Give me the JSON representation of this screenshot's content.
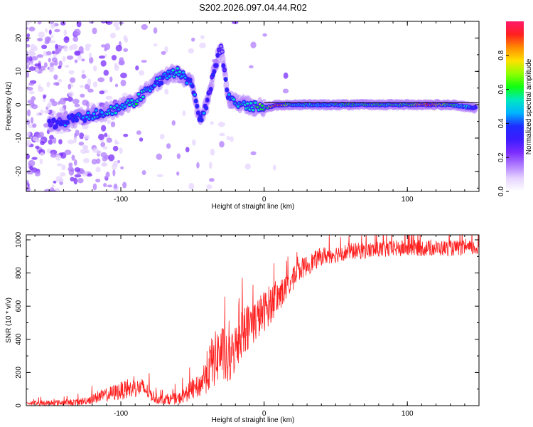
{
  "title": "S202.2026.097.04.44.R02",
  "colors": {
    "trace": "#ff2020",
    "frame": "#000000",
    "colormap": [
      "#ffffff",
      "#e6d4ff",
      "#b07cff",
      "#7a2cff",
      "#3a1cff",
      "#1f2dff",
      "#00b4ff",
      "#00e8c0",
      "#10ff10",
      "#90ff00",
      "#ffe000",
      "#ff8c00",
      "#ff2020",
      "#ff1a6a"
    ]
  },
  "chart_data": [
    {
      "type": "heatmap",
      "title": "S202.2026.097.04.44.R02",
      "xlabel": "Height of straight line (km)",
      "ylabel": "Frequency (Hz)",
      "xlim": [
        -166,
        150
      ],
      "ylim": [
        -26,
        25
      ],
      "xticks": [
        -100,
        0,
        100
      ],
      "yticks": [
        -20,
        -10,
        0,
        10,
        20
      ],
      "colorbar": {
        "label": "Normalized spectral amplitude",
        "range": [
          0,
          1
        ],
        "ticks": [
          "0.0",
          "0.2",
          "0.4",
          "0.6",
          "0.8"
        ]
      },
      "ridge": [
        {
          "x": -150,
          "f": -6,
          "amp": 0.25
        },
        {
          "x": -140,
          "f": -5,
          "amp": 0.35
        },
        {
          "x": -130,
          "f": -4,
          "amp": 0.45
        },
        {
          "x": -120,
          "f": -3,
          "amp": 0.45
        },
        {
          "x": -110,
          "f": -2,
          "amp": 0.5
        },
        {
          "x": -100,
          "f": -1,
          "amp": 0.5
        },
        {
          "x": -90,
          "f": 1,
          "amp": 0.55
        },
        {
          "x": -80,
          "f": 5,
          "amp": 0.5
        },
        {
          "x": -70,
          "f": 8,
          "amp": 0.45
        },
        {
          "x": -60,
          "f": 10,
          "amp": 0.5
        },
        {
          "x": -50,
          "f": 6,
          "amp": 0.4
        },
        {
          "x": -45,
          "f": -5,
          "amp": 0.4
        },
        {
          "x": -40,
          "f": 0,
          "amp": 0.35
        },
        {
          "x": -35,
          "f": 10,
          "amp": 0.3
        },
        {
          "x": -30,
          "f": 18,
          "amp": 0.2
        },
        {
          "x": -25,
          "f": 2,
          "amp": 0.45
        },
        {
          "x": -15,
          "f": 0,
          "amp": 0.55
        },
        {
          "x": 0,
          "f": -1,
          "amp": 0.6
        },
        {
          "x": 10,
          "f": 0,
          "amp": 0.9
        },
        {
          "x": 20,
          "f": 0,
          "amp": 0.55
        },
        {
          "x": 40,
          "f": 0,
          "amp": 0.5
        },
        {
          "x": 60,
          "f": 0,
          "amp": 0.55
        },
        {
          "x": 80,
          "f": 0,
          "amp": 0.6
        },
        {
          "x": 100,
          "f": 0,
          "amp": 0.6
        },
        {
          "x": 115,
          "f": 0,
          "amp": 0.95
        },
        {
          "x": 130,
          "f": 0,
          "amp": 0.55
        },
        {
          "x": 148,
          "f": -1,
          "amp": 0.4
        }
      ]
    },
    {
      "type": "line",
      "xlabel": "Height of straight line (km)",
      "ylabel": "SNR (10 * v/v)",
      "xlim": [
        -166,
        150
      ],
      "ylim": [
        0,
        1030
      ],
      "xticks": [
        -100,
        0,
        100
      ],
      "yticks": [
        0,
        200,
        400,
        600,
        800,
        1000
      ],
      "envelope": [
        {
          "x": -166,
          "base": 15,
          "spread": 25
        },
        {
          "x": -130,
          "base": 20,
          "spread": 40
        },
        {
          "x": -120,
          "base": 40,
          "spread": 60
        },
        {
          "x": -100,
          "base": 90,
          "spread": 110
        },
        {
          "x": -85,
          "base": 110,
          "spread": 110
        },
        {
          "x": -75,
          "base": 40,
          "spread": 60
        },
        {
          "x": -60,
          "base": 40,
          "spread": 70
        },
        {
          "x": -45,
          "base": 120,
          "spread": 140
        },
        {
          "x": -37,
          "base": 250,
          "spread": 320
        },
        {
          "x": -30,
          "base": 330,
          "spread": 350
        },
        {
          "x": -25,
          "base": 250,
          "spread": 300
        },
        {
          "x": -15,
          "base": 450,
          "spread": 300
        },
        {
          "x": -5,
          "base": 520,
          "spread": 260
        },
        {
          "x": 5,
          "base": 620,
          "spread": 240
        },
        {
          "x": 15,
          "base": 700,
          "spread": 160
        },
        {
          "x": 25,
          "base": 820,
          "spread": 130
        },
        {
          "x": 40,
          "base": 900,
          "spread": 110
        },
        {
          "x": 60,
          "base": 930,
          "spread": 100
        },
        {
          "x": 100,
          "base": 950,
          "spread": 100
        },
        {
          "x": 150,
          "base": 950,
          "spread": 90
        }
      ]
    }
  ]
}
